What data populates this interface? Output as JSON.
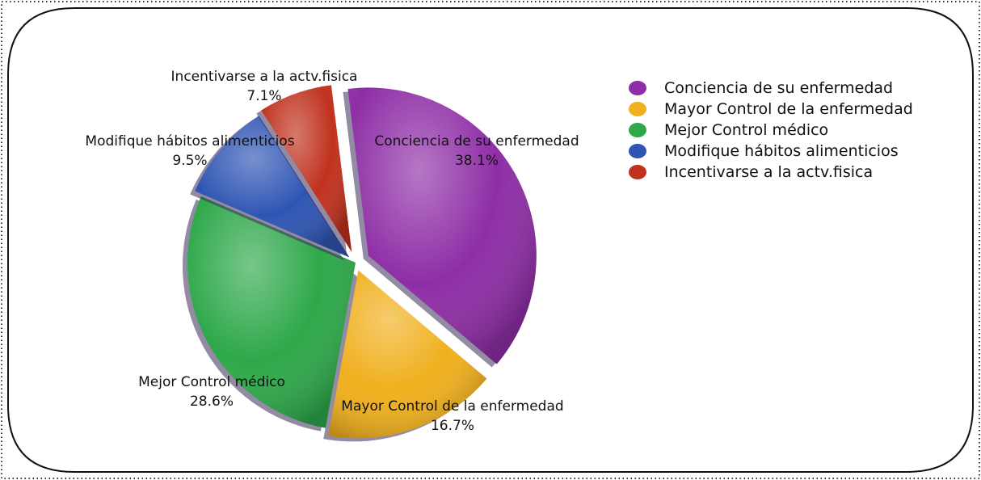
{
  "chart_data": {
    "type": "pie",
    "title": "",
    "legend_position": "top-right",
    "slices": [
      {
        "label": "Conciencia de su enfermedad",
        "pct_label": "38.1%",
        "value": 38.1,
        "color": "#8e2ea6"
      },
      {
        "label": "Mayor Control de la enfermedad",
        "pct_label": "16.7%",
        "value": 16.7,
        "color": "#f0b01e"
      },
      {
        "label": "Mejor Control médico",
        "pct_label": "28.6%",
        "value": 28.6,
        "color": "#2ea84a"
      },
      {
        "label": "Modifique hábitos alimenticios",
        "pct_label": "9.5%",
        "value": 9.5,
        "color": "#2f55b4"
      },
      {
        "label": "Incentivarse a  la actv.fisica",
        "pct_label": "7.1%",
        "value": 7.1,
        "color": "#c0321e"
      }
    ]
  }
}
